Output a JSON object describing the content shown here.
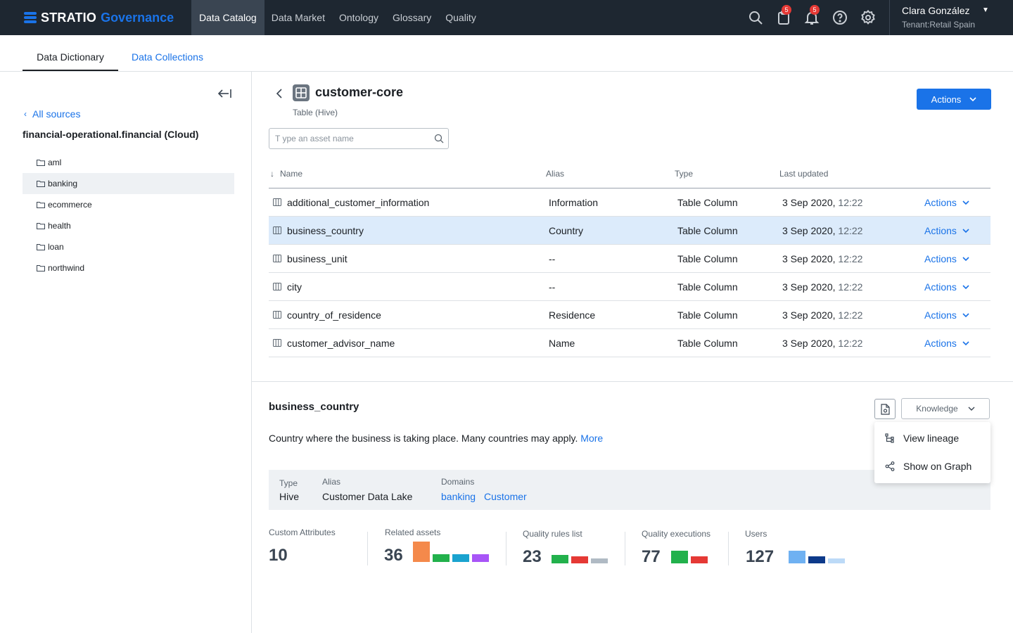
{
  "brand": {
    "name": "STRATIO",
    "product": "Governance"
  },
  "nav": [
    {
      "label": "Data Catalog"
    },
    {
      "label": "Data Market"
    },
    {
      "label": "Ontology"
    },
    {
      "label": "Glossary"
    },
    {
      "label": "Quality"
    }
  ],
  "top_icons": {
    "tasks_badge": "5",
    "notifications_badge": "5"
  },
  "user": {
    "name": "Clara González",
    "tenant": "Tenant:Retail Spain"
  },
  "subtabs": {
    "active": "Data Dictionary",
    "other": "Data Collections"
  },
  "sidebar": {
    "back_label": "All sources",
    "source": "financial-operational.financial (Cloud)",
    "folders": [
      "aml",
      "banking",
      "ecommerce",
      "health",
      "loan",
      "northwind"
    ]
  },
  "asset": {
    "title": "customer-core",
    "subtitle": "Table (Hive)",
    "actions_label": "Actions"
  },
  "search": {
    "placeholder": "T ype an asset name"
  },
  "table": {
    "headers": {
      "name": "Name",
      "alias": "Alias",
      "type": "Type",
      "updated": "Last updated"
    },
    "action_label": "Actions",
    "rows": [
      {
        "name": "additional_customer_information",
        "alias": "Information",
        "type": "Table Column",
        "date": "3 Sep 2020,",
        "time": "12:22"
      },
      {
        "name": "business_country",
        "alias": "Country",
        "type": "Table Column",
        "date": "3 Sep 2020,",
        "time": "12:22"
      },
      {
        "name": "business_unit",
        "alias": "--",
        "type": "Table Column",
        "date": "3 Sep 2020,",
        "time": "12:22"
      },
      {
        "name": "city",
        "alias": "--",
        "type": "Table Column",
        "date": "3 Sep 2020,",
        "time": "12:22"
      },
      {
        "name": "country_of_residence",
        "alias": "Residence",
        "type": "Table Column",
        "date": "3 Sep 2020,",
        "time": "12:22"
      },
      {
        "name": "customer_advisor_name",
        "alias": "Name",
        "type": "Table Column",
        "date": "3 Sep 2020,",
        "time": "12:22"
      }
    ]
  },
  "detail": {
    "title": "business_country",
    "description": "Country where the business is taking place. Many countries may apply.",
    "more": "More",
    "knowledge_label": "Knowledge",
    "menu": [
      "View lineage",
      "Show on Graph"
    ],
    "type_label": "Type",
    "type_value": "Hive",
    "alias_label": "Alias",
    "alias_value": "Customer Data Lake",
    "domains_label": "Domains",
    "domains": [
      "banking",
      "Customer"
    ]
  },
  "stats": {
    "custom_attributes": {
      "label": "Custom Attributes",
      "value": "10"
    },
    "related_assets": {
      "label": "Related assets",
      "value": "36"
    },
    "quality_rules": {
      "label": "Quality rules list",
      "value": "23"
    },
    "quality_executions": {
      "label": "Quality executions",
      "value": "77"
    },
    "users": {
      "label": "Users",
      "value": "127"
    }
  },
  "colors": {
    "accent": "#1a73e8",
    "topbar": "#1e2731",
    "selected_row": "#dcebfb",
    "orange": "#f4894b",
    "green": "#22b14c",
    "teal": "#1aa3cf",
    "purple": "#a855f7",
    "red": "#e53935",
    "grey": "#b0bac4",
    "light_blue": "#6fb1f2",
    "navy": "#0d3a8a",
    "pale_blue": "#bcdaf7"
  }
}
